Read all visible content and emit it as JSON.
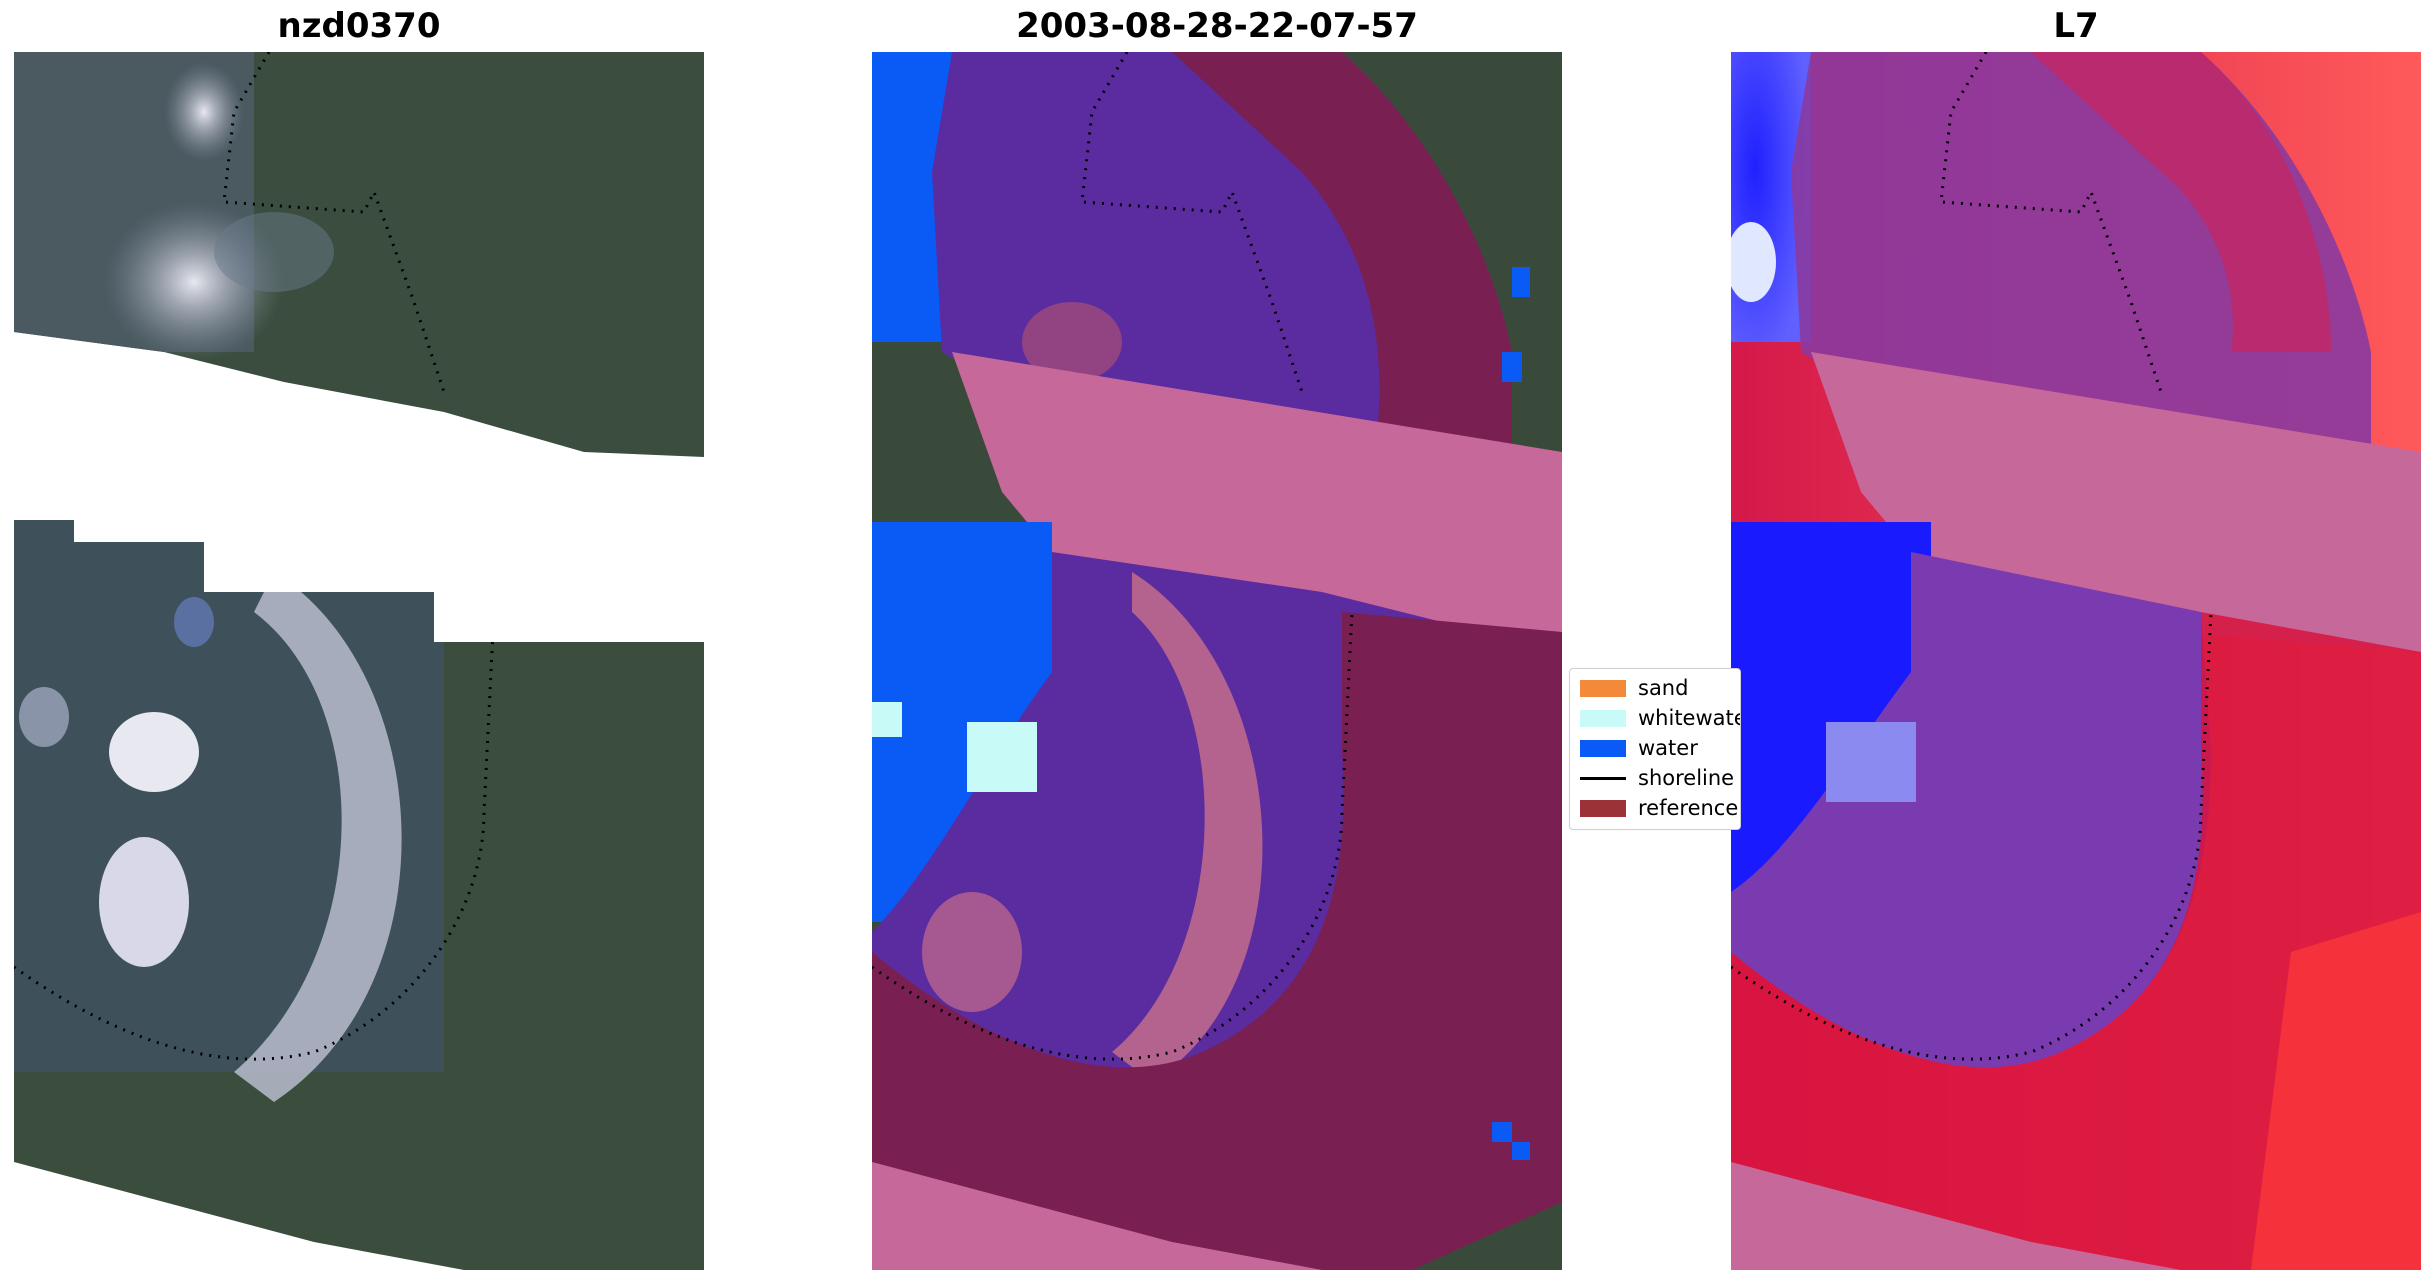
{
  "panels": {
    "rgb_title": "nzd0370",
    "classified_title": "2003-08-28-22-07-57",
    "index_title": "L7"
  },
  "legend": {
    "items": [
      {
        "label": "sand",
        "color": "#f28a3a",
        "kind": "patch"
      },
      {
        "label": "whitewater",
        "color": "#c8fbf8",
        "kind": "patch"
      },
      {
        "label": "water",
        "color": "#0a5af5",
        "kind": "patch"
      },
      {
        "label": "shoreline",
        "color": "#000000",
        "kind": "line"
      },
      {
        "label": "reference",
        "color": "#9a3238",
        "kind": "patch"
      }
    ]
  },
  "colors": {
    "land": "#3a4a3a",
    "water_class": "#0a5af5",
    "overlay_pink": "#c7689a",
    "overlay_purple": "#5a2ca0",
    "overlay_maroon": "#7a1f52",
    "index_red": "#e0103a",
    "index_blue": "#1010ff"
  }
}
